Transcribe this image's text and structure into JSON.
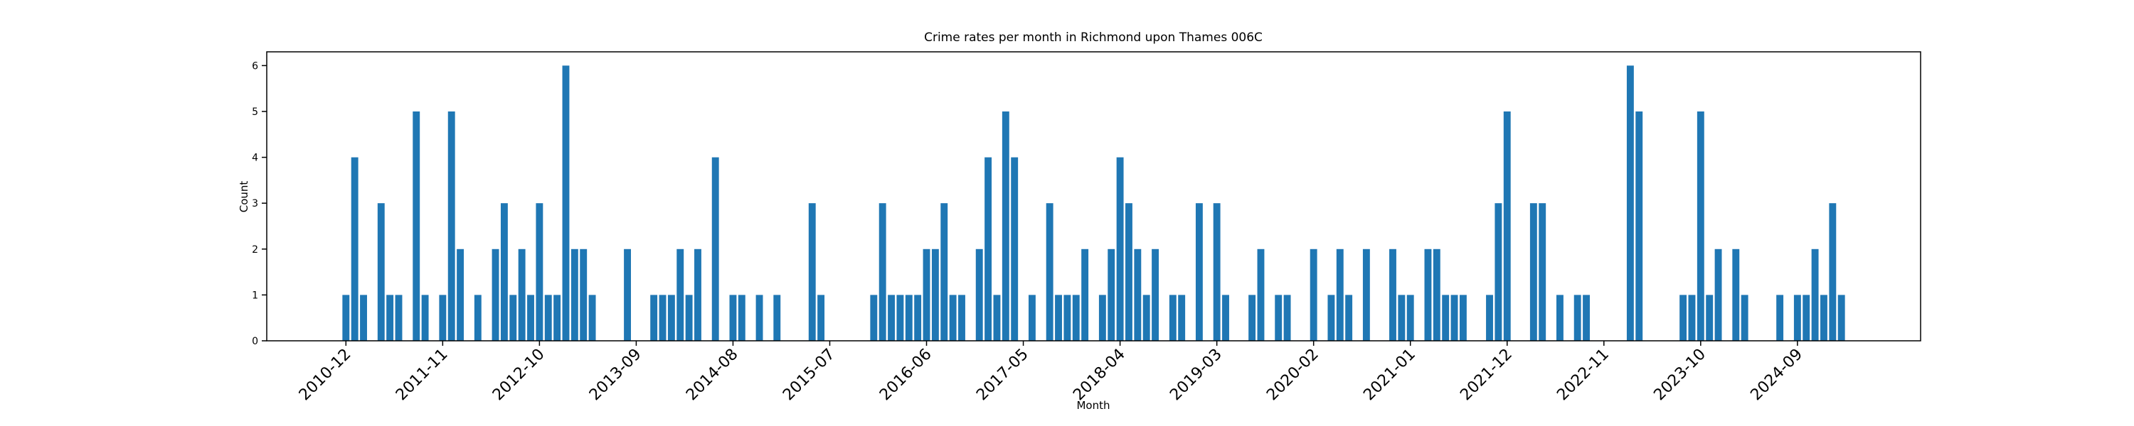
{
  "chart_data": {
    "type": "bar",
    "title": "Crime rates per month in Richmond upon Thames 006C",
    "x_label": "Month",
    "y_label": "Count",
    "color": "#1f77b4",
    "x": [
      "2010-12",
      "2011-01",
      "2011-02",
      "2011-04",
      "2011-05",
      "2011-06",
      "2011-08",
      "2011-09",
      "2011-11",
      "2011-12",
      "2012-01",
      "2012-03",
      "2012-05",
      "2012-06",
      "2012-07",
      "2012-08",
      "2012-09",
      "2012-10",
      "2012-11",
      "2012-12",
      "2013-01",
      "2013-02",
      "2013-03",
      "2013-04",
      "2013-08",
      "2013-11",
      "2013-12",
      "2014-01",
      "2014-02",
      "2014-03",
      "2014-04",
      "2014-06",
      "2014-08",
      "2014-09",
      "2014-11",
      "2015-01",
      "2015-05",
      "2015-06",
      "2015-12",
      "2016-01",
      "2016-02",
      "2016-03",
      "2016-04",
      "2016-05",
      "2016-06",
      "2016-07",
      "2016-08",
      "2016-09",
      "2016-10",
      "2016-12",
      "2017-01",
      "2017-02",
      "2017-03",
      "2017-04",
      "2017-06",
      "2017-08",
      "2017-09",
      "2017-10",
      "2017-11",
      "2017-12",
      "2018-02",
      "2018-03",
      "2018-04",
      "2018-05",
      "2018-06",
      "2018-07",
      "2018-08",
      "2018-10",
      "2018-11",
      "2019-01",
      "2019-03",
      "2019-04",
      "2019-07",
      "2019-08",
      "2019-10",
      "2019-11",
      "2020-02",
      "2020-04",
      "2020-05",
      "2020-06",
      "2020-08",
      "2020-11",
      "2020-12",
      "2021-01",
      "2021-03",
      "2021-04",
      "2021-05",
      "2021-06",
      "2021-07",
      "2021-10",
      "2021-11",
      "2021-12",
      "2022-03",
      "2022-04",
      "2022-06",
      "2022-08",
      "2022-09",
      "2023-02",
      "2023-03",
      "2023-08",
      "2023-09",
      "2023-10",
      "2023-11",
      "2023-12",
      "2024-02",
      "2024-03",
      "2024-07",
      "2024-09",
      "2024-10",
      "2024-11",
      "2024-12",
      "2025-01",
      "2025-02"
    ],
    "values": [
      1,
      4,
      1,
      3,
      1,
      1,
      5,
      1,
      1,
      5,
      2,
      1,
      2,
      3,
      1,
      2,
      1,
      3,
      1,
      1,
      6,
      2,
      2,
      1,
      2,
      1,
      1,
      1,
      2,
      1,
      2,
      4,
      1,
      1,
      1,
      1,
      3,
      1,
      1,
      3,
      1,
      1,
      1,
      1,
      2,
      2,
      3,
      1,
      1,
      2,
      4,
      1,
      5,
      4,
      1,
      3,
      1,
      1,
      1,
      2,
      1,
      2,
      4,
      3,
      2,
      1,
      2,
      1,
      1,
      3,
      3,
      1,
      1,
      2,
      1,
      1,
      2,
      1,
      2,
      1,
      2,
      2,
      1,
      1,
      2,
      2,
      1,
      1,
      1,
      1,
      3,
      5,
      3,
      3,
      1,
      1,
      1,
      6,
      5,
      1,
      1,
      5,
      1,
      2,
      2,
      1,
      1,
      1,
      1,
      2,
      1,
      3,
      1
    ],
    "xlim": [
      "2010-03",
      "2025-11"
    ],
    "xticks": [
      "2010-12",
      "2011-11",
      "2012-10",
      "2013-09",
      "2014-08",
      "2015-07",
      "2016-06",
      "2017-05",
      "2018-04",
      "2019-03",
      "2020-02",
      "2021-01",
      "2021-12",
      "2022-11",
      "2023-10",
      "2024-09"
    ],
    "ylim": [
      0,
      6.3
    ],
    "yticks": [
      0,
      1,
      2,
      3,
      4,
      5,
      6
    ]
  }
}
